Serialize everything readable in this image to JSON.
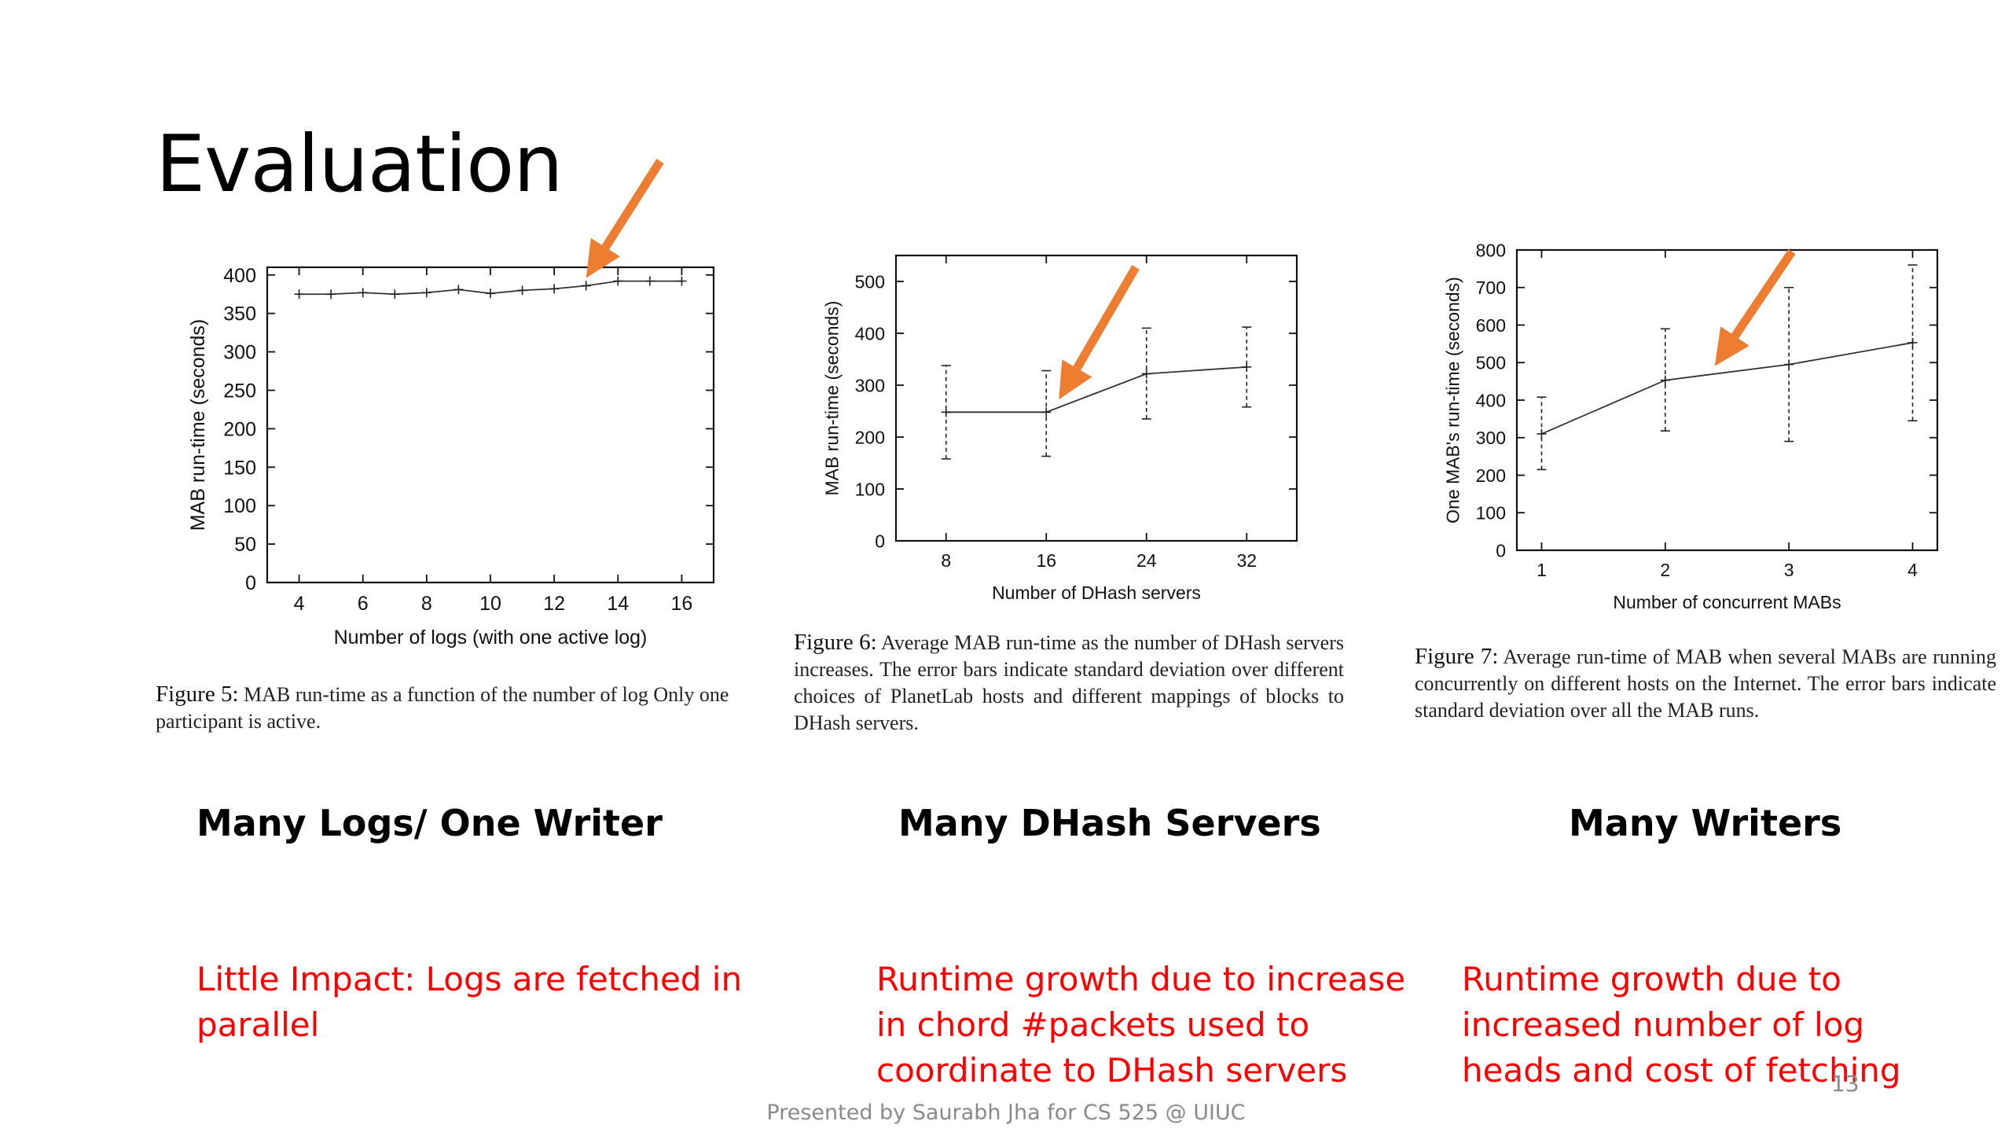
{
  "slide": {
    "title": "Evaluation",
    "footer": "Presented by Saurabh Jha for CS 525 @ UIUC",
    "page_number": "13",
    "arrow_color": "#ed7d31",
    "note_color": "#ff0000"
  },
  "panels": [
    {
      "heading": "Many Logs/ One Writer",
      "note": "Little Impact: Logs are fetched in parallel",
      "caption_label": "Figure 5:",
      "caption_text": "MAB run-time as a function of the number of log Only one participant is active."
    },
    {
      "heading": "Many DHash Servers",
      "note": "Runtime growth due to increase in chord #packets used to coordinate to DHash servers",
      "caption_label": "Figure 6:",
      "caption_text": "Average MAB run-time as the number of DHash servers increases. The error bars indicate standard deviation over different choices of PlanetLab hosts and different mappings of blocks to DHash servers."
    },
    {
      "heading": "Many Writers",
      "note": "Runtime growth due to increased number of log heads and cost of fetching",
      "caption_label": "Figure 7:",
      "caption_text": "Average run-time of MAB when several MABs are running concurrently on different hosts on the Internet. The error bars indicate standard deviation over all the MAB runs."
    }
  ],
  "chart_data": [
    {
      "type": "line",
      "xlabel": "Number of logs (with one active log)",
      "ylabel": "MAB run-time (seconds)",
      "xlim": [
        3,
        17
      ],
      "ylim": [
        0,
        410
      ],
      "xticks": [
        4,
        6,
        8,
        10,
        12,
        14,
        16
      ],
      "yticks": [
        0,
        50,
        100,
        150,
        200,
        250,
        300,
        350,
        400
      ],
      "x": [
        4,
        5,
        6,
        7,
        8,
        9,
        10,
        11,
        12,
        13,
        14,
        15,
        16
      ],
      "y": [
        375,
        375,
        377,
        375,
        377,
        381,
        376,
        380,
        382,
        386,
        392,
        392,
        392
      ],
      "grid": false,
      "highlight_arrow_x": 13
    },
    {
      "type": "line",
      "xlabel": "Number of DHash servers",
      "ylabel": "MAB run-time (seconds)",
      "xlim": [
        4,
        36
      ],
      "ylim": [
        0,
        550
      ],
      "xticks": [
        8,
        16,
        24,
        32
      ],
      "yticks": [
        0,
        100,
        200,
        300,
        400,
        500
      ],
      "x": [
        8,
        16,
        24,
        32
      ],
      "y": [
        248,
        248,
        322,
        335
      ],
      "y_low": [
        158,
        163,
        235,
        258
      ],
      "y_high": [
        338,
        328,
        410,
        412
      ],
      "grid": false,
      "highlight_arrow_x": 17
    },
    {
      "type": "line",
      "xlabel": "Number of concurrent MABs",
      "ylabel": "One MAB's run-time (seconds)",
      "xlim": [
        0.8,
        4.2
      ],
      "ylim": [
        0,
        800
      ],
      "xticks": [
        1,
        2,
        3,
        4
      ],
      "yticks": [
        0,
        100,
        200,
        300,
        400,
        500,
        600,
        700,
        800
      ],
      "x": [
        1,
        2,
        3,
        4
      ],
      "y": [
        310,
        453,
        495,
        553
      ],
      "y_low": [
        215,
        318,
        290,
        345
      ],
      "y_high": [
        408,
        590,
        700,
        760
      ],
      "grid": false,
      "highlight_arrow_x": 2.4
    }
  ]
}
